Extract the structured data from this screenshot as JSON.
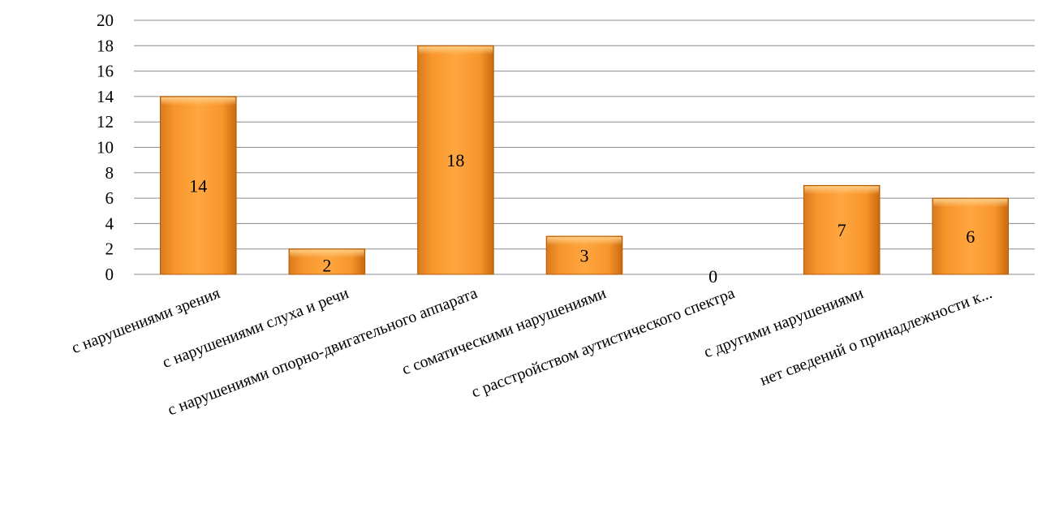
{
  "chart_data": {
    "type": "bar",
    "categories": [
      "с нарушениями зрения",
      "с нарушениями слуха и речи",
      "с нарушениями опорно-двигательного аппарата",
      "с соматическими  нарушениями",
      "с расстройством аутистического спектра",
      "с другими нарушениями",
      "нет сведений о принадлежности к..."
    ],
    "values": [
      14,
      2,
      18,
      3,
      0,
      7,
      6
    ],
    "data_labels": [
      "14",
      "2",
      "18",
      "3",
      "0",
      "7",
      "6"
    ],
    "title": "",
    "xlabel": "",
    "ylabel": "",
    "ylim": [
      0,
      20
    ],
    "yticks": [
      "0",
      "2",
      "4",
      "6",
      "8",
      "10",
      "12",
      "14",
      "16",
      "18",
      "20"
    ],
    "grid": true,
    "legend": "none",
    "colors": {
      "bar_light": "#ffc170",
      "bar_mid": "#f7952b",
      "bar_dark": "#d4700d",
      "gridline": "#8c8c8c",
      "text": "#000000"
    }
  }
}
